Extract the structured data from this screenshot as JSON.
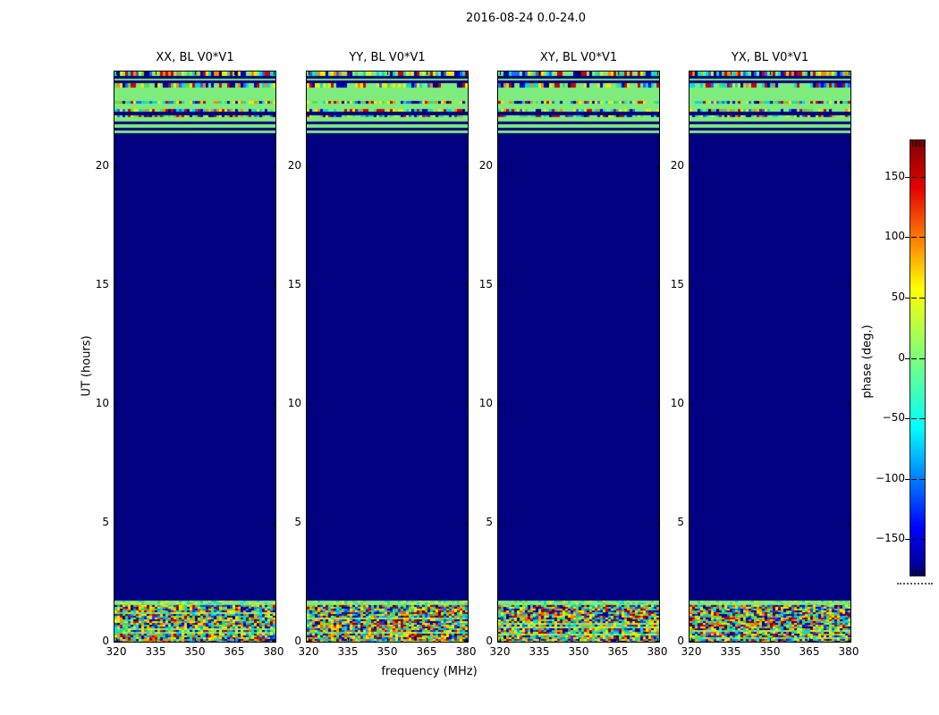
{
  "figure": {
    "title": "2016-08-24 0.0-24.0",
    "xlabel": "frequency (MHz)",
    "ylabel": "UT (hours)",
    "colorbar_label": "phase (deg.)"
  },
  "chart_data": {
    "type": "heatmap",
    "title": "2016-08-24 0.0-24.0",
    "xlabel": "frequency (MHz)",
    "ylabel": "UT (hours)",
    "x_ticks": [
      "320",
      "335",
      "350",
      "365",
      "380"
    ],
    "x_tick_values": [
      320,
      335,
      350,
      365,
      380
    ],
    "y_ticks": [
      "0",
      "5",
      "10",
      "15",
      "20"
    ],
    "y_tick_values": [
      0,
      5,
      10,
      15,
      20
    ],
    "x_range": [
      319.3,
      380.7
    ],
    "y_range": [
      0,
      24
    ],
    "grid": false,
    "panels": [
      {
        "title": "XX, BL V0*V1",
        "seed": 101
      },
      {
        "title": "YY, BL V0*V1",
        "seed": 202
      },
      {
        "title": "XY, BL V0*V1",
        "seed": 303
      },
      {
        "title": "YX, BL V0*V1",
        "seed": 404
      }
    ],
    "colorbar": {
      "label": "phase (deg.)",
      "ticks": [
        "150",
        "100",
        "50",
        "0",
        "−50",
        "−100",
        "−150"
      ],
      "tick_values": [
        150,
        100,
        50,
        0,
        -50,
        -100,
        -150
      ],
      "vmin": -180,
      "vmax": 180,
      "colormap": "jet"
    },
    "colors": {
      "navy": "#000080",
      "green": "#7dec7d",
      "palette_top": [
        "#cc0000",
        "#ff8800",
        "#eeee00",
        "#55dd55",
        "#00dddd",
        "#2266ff",
        "#0000cc",
        "#000080",
        "#eeee00",
        "#00dddd",
        "#cc0000",
        "#7dec7d"
      ],
      "palette_full": [
        "#800000",
        "#cc0000",
        "#ff5500",
        "#ff9900",
        "#ffdd00",
        "#eeee00",
        "#aadd00",
        "#55dd55",
        "#00ddaa",
        "#00dddd",
        "#0099ff",
        "#0044ff",
        "#0000cc",
        "#000080"
      ],
      "palette_light": [
        "#7dec7d",
        "#aaee55",
        "#eeee00",
        "#55dd55",
        "#00dddd",
        "#88ee88"
      ]
    },
    "regions": [
      {
        "type": "striped",
        "ut_start": 21.417,
        "ut_end": 24.0,
        "rows": [
          {
            "t": "noise",
            "h": 0.2
          },
          {
            "t": "navy",
            "h": 0.1
          },
          {
            "t": "green",
            "h": 0.064
          },
          {
            "t": "navy",
            "h": 0.124
          },
          {
            "t": "noise",
            "h": 0.177
          },
          {
            "t": "green",
            "h": 0.564
          },
          {
            "t": "noise",
            "h": 0.113
          },
          {
            "t": "green",
            "h": 0.226
          },
          {
            "t": "noise",
            "h": 0.113
          },
          {
            "t": "navy",
            "h": 0.15
          },
          {
            "t": "noise",
            "h": 0.075
          },
          {
            "t": "green",
            "h": 0.188
          },
          {
            "t": "navy",
            "h": 0.113
          },
          {
            "t": "green",
            "h": 0.15
          },
          {
            "t": "navy",
            "h": 0.113
          },
          {
            "t": "green",
            "h": 0.113
          }
        ]
      },
      {
        "type": "flat",
        "color": "navy",
        "ut_start": 1.73,
        "ut_end": 21.417
      },
      {
        "type": "noise_sparse",
        "ut_start": 1.55,
        "ut_end": 1.73
      },
      {
        "type": "noise_dense",
        "ut_start": 0.0,
        "ut_end": 1.55
      }
    ]
  }
}
